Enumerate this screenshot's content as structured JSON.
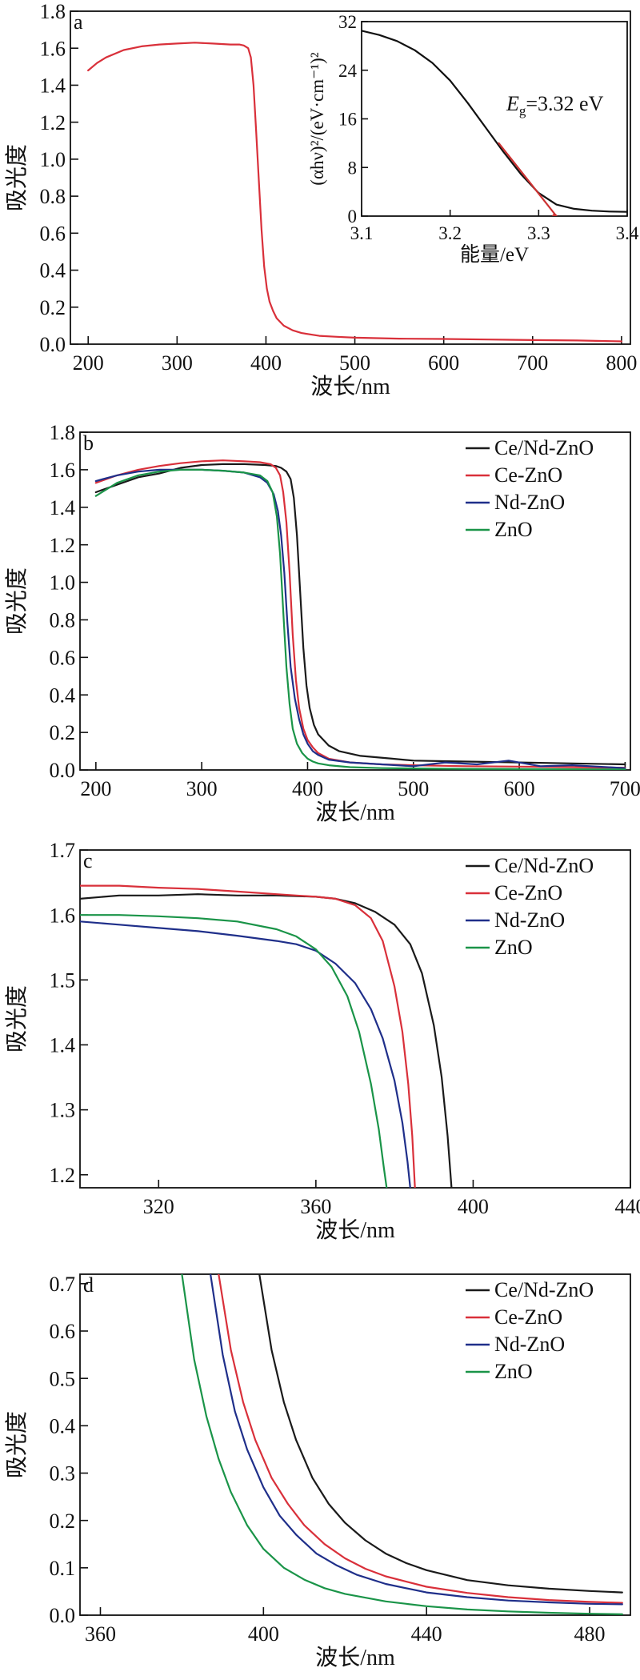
{
  "colors": {
    "Ce/Nd-ZnO": "#1a1a1a",
    "Ce-ZnO": "#d9303a",
    "Nd-ZnO": "#1f2f8a",
    "ZnO": "#1a9448",
    "tauc_fit": "#cc3333",
    "tauc_curve": "#111111"
  },
  "chart_data": [
    {
      "id": "a",
      "type": "line",
      "panel_label": "a",
      "xlabel": "波长/nm",
      "ylabel": "吸光度",
      "xlim": [
        180,
        810
      ],
      "ylim": [
        0,
        1.8
      ],
      "xticks": [
        200,
        300,
        400,
        500,
        600,
        700,
        800
      ],
      "yticks": [
        0.0,
        0.2,
        0.4,
        0.6,
        0.8,
        1.0,
        1.2,
        1.4,
        1.6,
        1.8
      ],
      "series": [
        {
          "color": "#d9303a",
          "x": [
            200,
            210,
            220,
            240,
            260,
            280,
            300,
            320,
            340,
            360,
            370,
            375,
            380,
            383,
            386,
            389,
            392,
            395,
            398,
            401,
            404,
            408,
            412,
            420,
            430,
            440,
            460,
            480,
            500,
            550,
            600,
            650,
            700,
            750,
            800
          ],
          "y": [
            1.48,
            1.52,
            1.55,
            1.59,
            1.61,
            1.62,
            1.625,
            1.63,
            1.625,
            1.62,
            1.62,
            1.615,
            1.6,
            1.55,
            1.4,
            1.15,
            0.88,
            0.62,
            0.42,
            0.3,
            0.23,
            0.18,
            0.14,
            0.1,
            0.075,
            0.06,
            0.045,
            0.04,
            0.035,
            0.03,
            0.028,
            0.025,
            0.022,
            0.02,
            0.015
          ]
        }
      ],
      "inset": {
        "type": "line",
        "xlabel": "能量/eV",
        "ylabel": "(αhν)²/(eV·cm⁻¹)²",
        "xlim": [
          3.1,
          3.4
        ],
        "ylim": [
          0,
          32
        ],
        "xticks": [
          3.1,
          3.2,
          3.3,
          3.4
        ],
        "yticks": [
          0,
          8,
          16,
          24,
          32
        ],
        "annotation_symbol": "E",
        "annotation_subscript": "g",
        "annotation_value": "=3.32 eV",
        "series": [
          {
            "role": "curve",
            "x": [
              3.1,
              3.12,
              3.14,
              3.16,
              3.18,
              3.2,
              3.22,
              3.24,
              3.26,
              3.28,
              3.3,
              3.32,
              3.34,
              3.36,
              3.38,
              3.4
            ],
            "y": [
              30.5,
              29.8,
              28.8,
              27.3,
              25.2,
              22.3,
              18.6,
              14.6,
              10.6,
              6.9,
              3.8,
              1.9,
              1.2,
              0.9,
              0.75,
              0.7
            ]
          },
          {
            "role": "tangent",
            "x": [
              3.255,
              3.32
            ],
            "y": [
              12.0,
              0.0
            ]
          }
        ]
      }
    },
    {
      "id": "b",
      "type": "line",
      "panel_label": "b",
      "xlabel": "波长/nm",
      "ylabel": "吸光度",
      "xlim": [
        185,
        705
      ],
      "ylim": [
        0,
        1.8
      ],
      "xticks": [
        200,
        300,
        400,
        500,
        600,
        700
      ],
      "yticks": [
        0.0,
        0.2,
        0.4,
        0.6,
        0.8,
        1.0,
        1.2,
        1.4,
        1.6,
        1.8
      ],
      "legend": [
        "Ce/Nd-ZnO",
        "Ce-ZnO",
        "Nd-ZnO",
        "ZnO"
      ],
      "series": [
        {
          "name": "Ce/Nd-ZnO",
          "x": [
            200,
            220,
            240,
            260,
            280,
            300,
            320,
            340,
            360,
            370,
            375,
            380,
            384,
            387,
            390,
            393,
            396,
            399,
            402,
            406,
            410,
            420,
            430,
            450,
            480,
            500,
            550,
            600,
            650,
            700
          ],
          "y": [
            1.48,
            1.52,
            1.56,
            1.58,
            1.61,
            1.625,
            1.63,
            1.63,
            1.625,
            1.62,
            1.61,
            1.59,
            1.55,
            1.45,
            1.25,
            0.95,
            0.65,
            0.45,
            0.33,
            0.24,
            0.19,
            0.13,
            0.1,
            0.075,
            0.06,
            0.05,
            0.045,
            0.04,
            0.035,
            0.03
          ]
        },
        {
          "name": "Ce-ZnO",
          "x": [
            200,
            220,
            240,
            260,
            280,
            300,
            320,
            340,
            355,
            365,
            370,
            374,
            377,
            380,
            383,
            386,
            389,
            392,
            396,
            400,
            405,
            410,
            420,
            440,
            470,
            500,
            550,
            600,
            650,
            700
          ],
          "y": [
            1.53,
            1.57,
            1.6,
            1.62,
            1.635,
            1.645,
            1.65,
            1.645,
            1.64,
            1.63,
            1.61,
            1.57,
            1.48,
            1.32,
            1.05,
            0.72,
            0.48,
            0.33,
            0.22,
            0.16,
            0.12,
            0.09,
            0.06,
            0.04,
            0.03,
            0.025,
            0.02,
            0.018,
            0.015,
            0.012
          ]
        },
        {
          "name": "Nd-ZnO",
          "x": [
            200,
            220,
            240,
            260,
            280,
            300,
            320,
            340,
            355,
            362,
            368,
            372,
            375,
            378,
            381,
            384,
            388,
            392,
            396,
            400,
            405,
            410,
            420,
            440,
            470,
            500,
            530,
            560,
            590,
            620,
            650,
            700
          ],
          "y": [
            1.54,
            1.57,
            1.59,
            1.6,
            1.6,
            1.6,
            1.595,
            1.585,
            1.56,
            1.53,
            1.47,
            1.38,
            1.25,
            1.05,
            0.78,
            0.55,
            0.38,
            0.27,
            0.19,
            0.14,
            0.1,
            0.08,
            0.055,
            0.04,
            0.03,
            0.02,
            0.04,
            0.03,
            0.05,
            0.02,
            0.025,
            0.01
          ]
        },
        {
          "name": "ZnO",
          "x": [
            200,
            220,
            240,
            260,
            280,
            300,
            320,
            340,
            355,
            362,
            367,
            371,
            374,
            377,
            380,
            383,
            386,
            390,
            395,
            400,
            405,
            410,
            420,
            440,
            470,
            500,
            550,
            600,
            650,
            700
          ],
          "y": [
            1.46,
            1.53,
            1.57,
            1.59,
            1.6,
            1.6,
            1.595,
            1.585,
            1.57,
            1.54,
            1.48,
            1.35,
            1.15,
            0.85,
            0.55,
            0.35,
            0.22,
            0.14,
            0.09,
            0.06,
            0.045,
            0.035,
            0.025,
            0.015,
            0.01,
            0.008,
            0.006,
            0.005,
            0.004,
            0.003
          ]
        }
      ]
    },
    {
      "id": "c",
      "type": "line",
      "panel_label": "c",
      "xlabel": "波长/nm",
      "ylabel": "吸光度",
      "xlim": [
        300,
        440
      ],
      "ylim": [
        1.18,
        1.7
      ],
      "xticks": [
        320,
        360,
        400,
        440
      ],
      "yticks": [
        1.2,
        1.3,
        1.4,
        1.5,
        1.6,
        1.7
      ],
      "legend": [
        "Ce/Nd-ZnO",
        "Ce-ZnO",
        "Nd-ZnO",
        "ZnO"
      ],
      "series": [
        {
          "name": "Ce/Nd-ZnO",
          "x": [
            300,
            310,
            320,
            330,
            340,
            350,
            360,
            365,
            370,
            375,
            380,
            384,
            387,
            390,
            392,
            393.5,
            394.5
          ],
          "y": [
            1.625,
            1.63,
            1.63,
            1.632,
            1.63,
            1.63,
            1.628,
            1.625,
            1.618,
            1.605,
            1.585,
            1.555,
            1.51,
            1.43,
            1.35,
            1.26,
            1.18
          ]
        },
        {
          "name": "Ce-ZnO",
          "x": [
            300,
            310,
            320,
            330,
            340,
            350,
            355,
            360,
            365,
            370,
            374,
            377,
            380,
            382,
            383.5,
            384.5,
            385.2
          ],
          "y": [
            1.645,
            1.645,
            1.642,
            1.64,
            1.636,
            1.632,
            1.63,
            1.628,
            1.625,
            1.615,
            1.595,
            1.56,
            1.49,
            1.42,
            1.34,
            1.26,
            1.18
          ]
        },
        {
          "name": "Nd-ZnO",
          "x": [
            300,
            310,
            320,
            330,
            340,
            350,
            355,
            360,
            365,
            370,
            374,
            377,
            380,
            382,
            383.3,
            384
          ],
          "y": [
            1.59,
            1.585,
            1.58,
            1.575,
            1.568,
            1.56,
            1.555,
            1.545,
            1.525,
            1.495,
            1.455,
            1.41,
            1.345,
            1.28,
            1.22,
            1.18
          ]
        },
        {
          "name": "ZnO",
          "x": [
            300,
            310,
            320,
            330,
            340,
            350,
            355,
            360,
            364,
            368,
            371,
            374,
            376,
            377.3,
            378
          ],
          "y": [
            1.6,
            1.6,
            1.598,
            1.595,
            1.59,
            1.578,
            1.567,
            1.547,
            1.52,
            1.475,
            1.42,
            1.34,
            1.27,
            1.21,
            1.18
          ]
        }
      ]
    },
    {
      "id": "d",
      "type": "line",
      "panel_label": "d",
      "xlabel": "波长/nm",
      "ylabel": "吸光度",
      "xlim": [
        355,
        490
      ],
      "ylim": [
        0,
        0.72
      ],
      "xticks": [
        360,
        400,
        440,
        480
      ],
      "yticks": [
        0.0,
        0.1,
        0.2,
        0.3,
        0.4,
        0.5,
        0.6,
        0.7
      ],
      "legend": [
        "Ce/Nd-ZnO",
        "Ce-ZnO",
        "Nd-ZnO",
        "ZnO"
      ],
      "series": [
        {
          "name": "Ce/Nd-ZnO",
          "x": [
            399,
            402,
            405,
            408,
            412,
            416,
            420,
            425,
            430,
            435,
            440,
            450,
            460,
            470,
            480,
            488
          ],
          "y": [
            0.72,
            0.56,
            0.45,
            0.37,
            0.29,
            0.235,
            0.195,
            0.158,
            0.13,
            0.11,
            0.095,
            0.074,
            0.063,
            0.056,
            0.051,
            0.048
          ]
        },
        {
          "name": "Ce-ZnO",
          "x": [
            389,
            392,
            395,
            398,
            402,
            406,
            410,
            415,
            420,
            425,
            430,
            440,
            450,
            460,
            470,
            480,
            488
          ],
          "y": [
            0.72,
            0.56,
            0.45,
            0.37,
            0.29,
            0.235,
            0.19,
            0.15,
            0.12,
            0.098,
            0.082,
            0.06,
            0.047,
            0.038,
            0.032,
            0.028,
            0.026
          ]
        },
        {
          "name": "Nd-ZnO",
          "x": [
            387,
            390,
            393,
            396,
            400,
            404,
            408,
            413,
            418,
            423,
            430,
            440,
            450,
            460,
            470,
            480,
            488
          ],
          "y": [
            0.72,
            0.55,
            0.43,
            0.35,
            0.27,
            0.21,
            0.17,
            0.13,
            0.105,
            0.085,
            0.066,
            0.048,
            0.038,
            0.031,
            0.027,
            0.024,
            0.023
          ]
        },
        {
          "name": "ZnO",
          "x": [
            380,
            383,
            386,
            389,
            392,
            396,
            400,
            405,
            410,
            415,
            420,
            430,
            440,
            450,
            460,
            470,
            480,
            488
          ],
          "y": [
            0.72,
            0.54,
            0.42,
            0.33,
            0.26,
            0.19,
            0.14,
            0.1,
            0.075,
            0.057,
            0.045,
            0.029,
            0.019,
            0.012,
            0.008,
            0.005,
            0.003,
            0.002
          ]
        }
      ]
    }
  ]
}
